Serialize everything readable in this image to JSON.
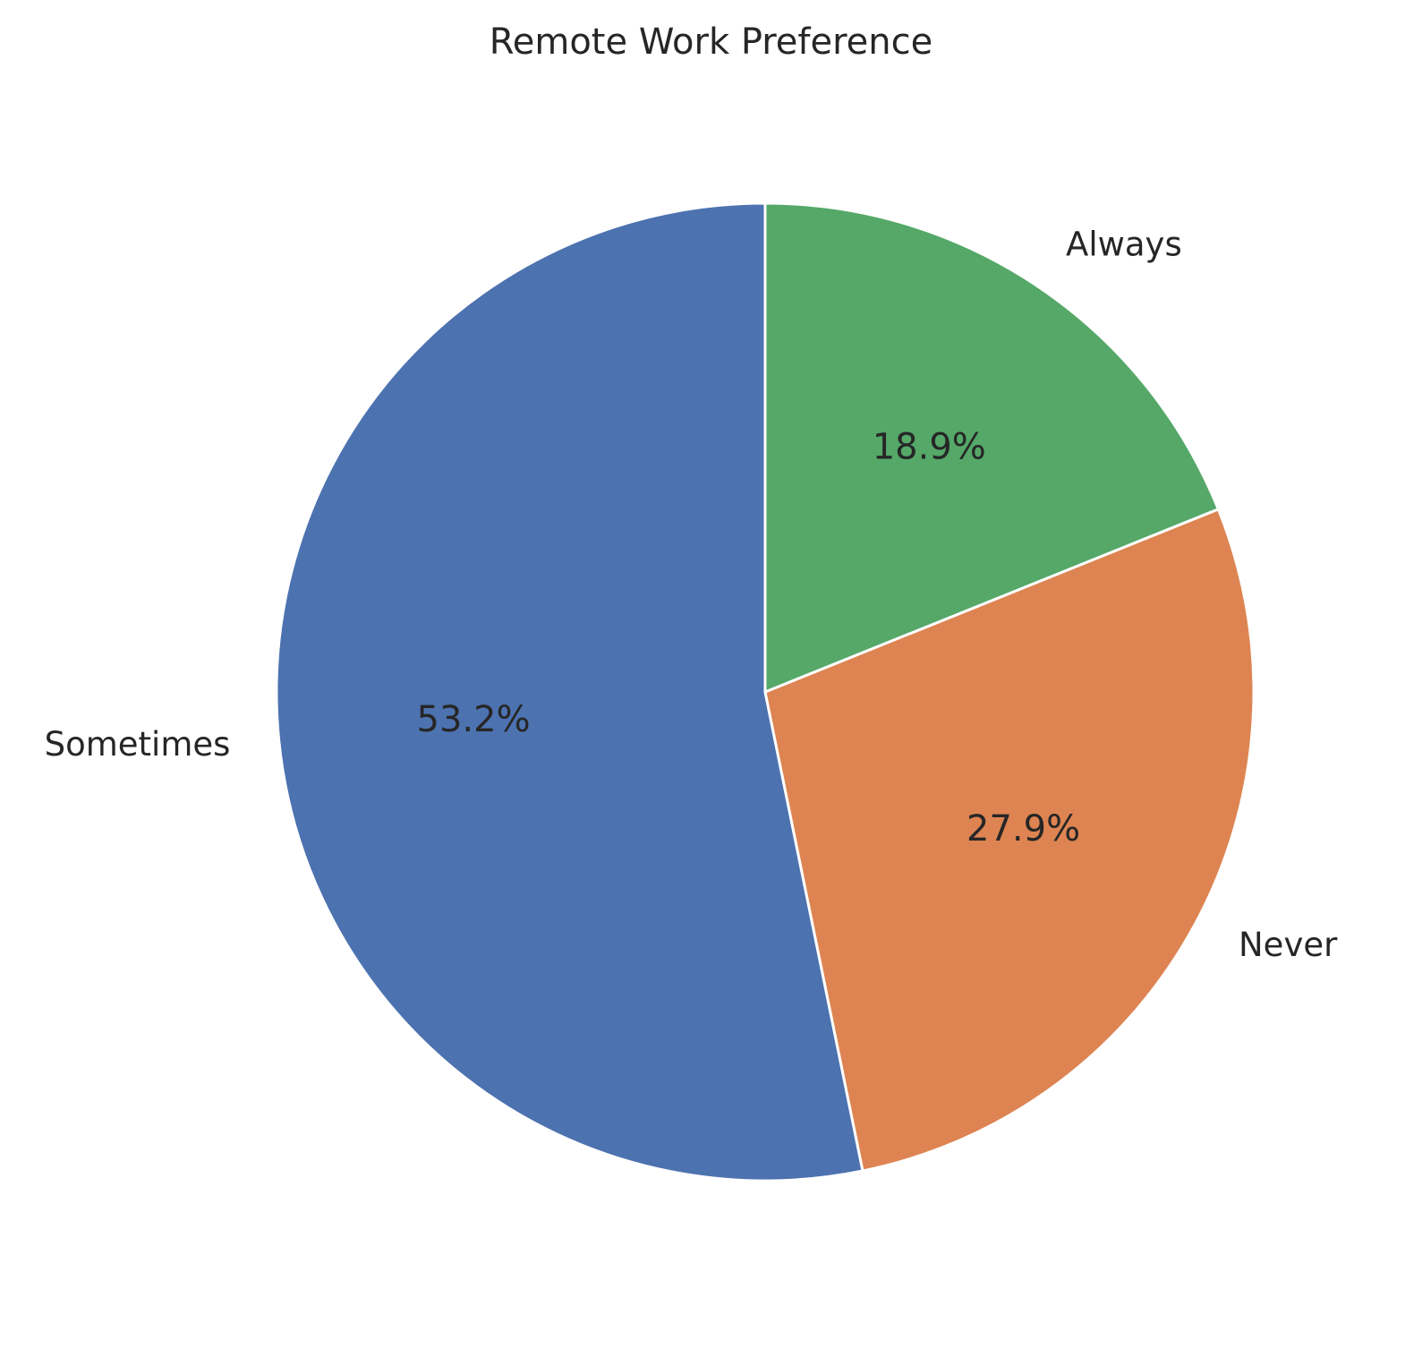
{
  "chart_data": {
    "type": "pie",
    "title": "Remote Work Preference",
    "categories": [
      "Sometimes",
      "Never",
      "Always"
    ],
    "values": [
      53.2,
      27.9,
      18.9
    ],
    "labels": [
      "53.2%",
      "27.9%",
      "18.9%"
    ],
    "colors": [
      "#4c72b0",
      "#dd8452",
      "#55a868"
    ],
    "start_angle_deg": 90,
    "direction": "counterclockwise",
    "legend": "none"
  }
}
